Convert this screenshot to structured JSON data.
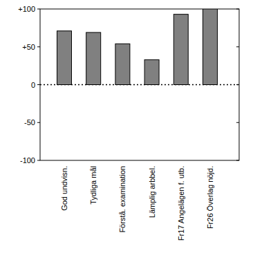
{
  "chart_data": {
    "type": "bar",
    "categories": [
      "God undvisn.",
      "Tydliga mål",
      "Förstå. examination",
      "Lämplig arbbel.",
      "Fr17 Angelägen f. utb.",
      "Fr26 Överlag nöjd."
    ],
    "values": [
      71,
      69,
      54,
      33,
      93,
      100
    ],
    "color": "#808080",
    "ylim": [
      -100,
      100
    ],
    "yticks": [
      {
        "value": 100,
        "label": "+100"
      },
      {
        "value": 50,
        "label": "+50"
      },
      0,
      -50,
      -100
    ],
    "grid": false
  }
}
